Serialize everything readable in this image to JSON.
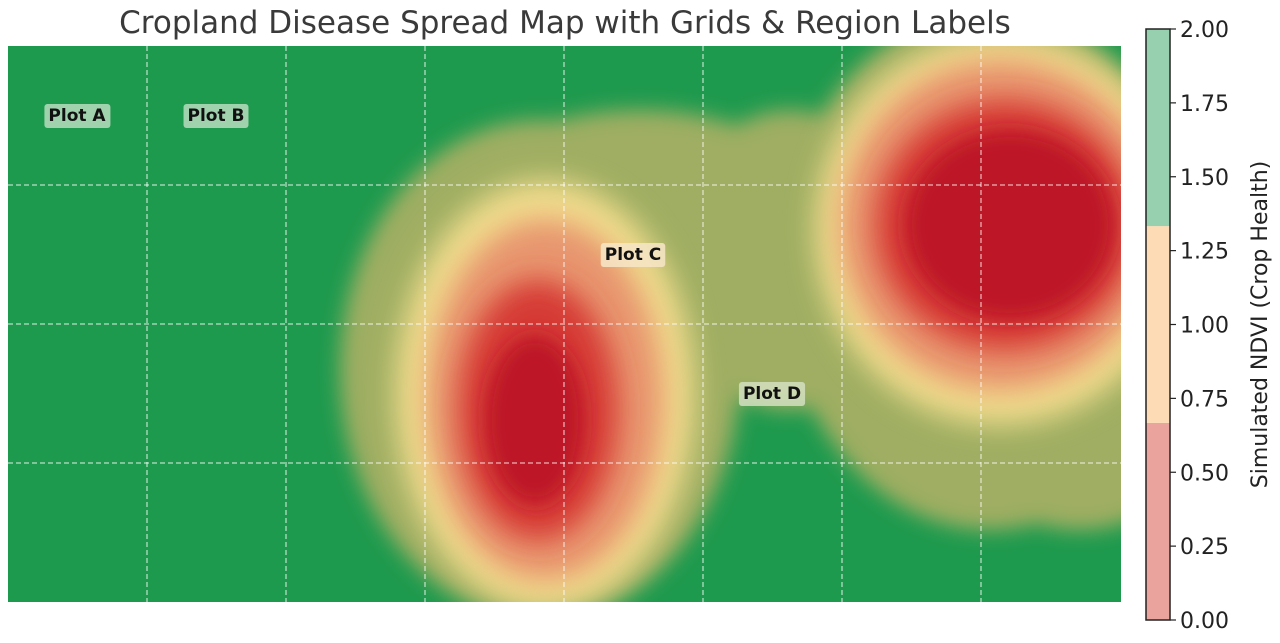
{
  "chart_data": {
    "type": "heatmap",
    "title": "Cropland Disease Spread Map with Grids & Region Labels",
    "grid": true,
    "grid_style": "white dashed",
    "colormap": "green-yellow-red (healthy to diseased)",
    "region_labels": [
      {
        "name": "plot-a",
        "text": "Plot A"
      },
      {
        "name": "plot-b",
        "text": "Plot B"
      },
      {
        "name": "plot-c",
        "text": "Plot C"
      },
      {
        "name": "plot-d",
        "text": "Plot D"
      }
    ],
    "disease_hotspots": [
      {
        "location": "center-left (below Plot C)",
        "severity": "high"
      },
      {
        "location": "upper-right",
        "severity": "high"
      }
    ],
    "colorbar": {
      "label": "Simulated NDVI (Crop Health)",
      "range": [
        0.0,
        2.0
      ],
      "ticks": [
        "0.00",
        "0.25",
        "0.50",
        "0.75",
        "1.00",
        "1.25",
        "1.50",
        "1.75",
        "2.00"
      ],
      "bands": [
        {
          "from": 0.0,
          "to": 0.667,
          "color": "#eba39d"
        },
        {
          "from": 0.667,
          "to": 1.333,
          "color": "#fcdbb5"
        },
        {
          "from": 1.333,
          "to": 2.0,
          "color": "#97d0ae"
        }
      ]
    },
    "colors": {
      "healthy": "#1e9a4e",
      "moderate": "#9fae62",
      "stress": "#f0dc8c",
      "diseased": "#bd1628"
    }
  }
}
